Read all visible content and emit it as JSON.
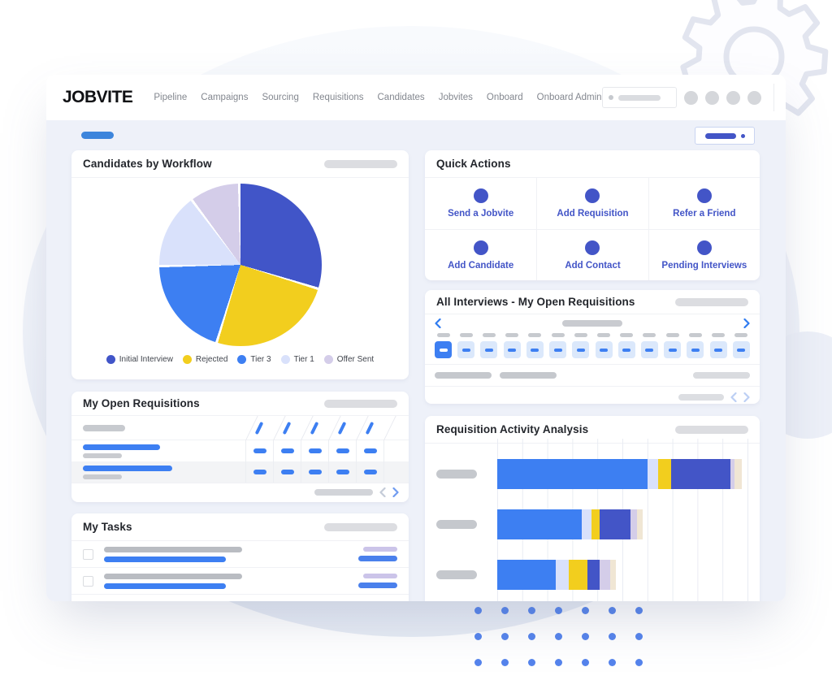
{
  "nav": {
    "logo": "JOBVITE",
    "menu": [
      "Pipeline",
      "Campaigns",
      "Sourcing",
      "Requisitions",
      "Candidates",
      "Jobvites",
      "Onboard",
      "Onboard Admin"
    ]
  },
  "cards": {
    "workflow": {
      "title": "Candidates by Workflow"
    },
    "quick_actions": {
      "title": "Quick Actions",
      "actions": [
        "Send a Jobvite",
        "Add Requisition",
        "Refer a Friend",
        "Add Candidate",
        "Add Contact",
        "Pending Interviews"
      ]
    },
    "interviews": {
      "title": "All Interviews - My Open Requisitions",
      "days": 14,
      "selected_day_index": 0
    },
    "activity": {
      "title": "Requisition Activity Analysis"
    },
    "requisitions": {
      "title": "My Open Requisitions",
      "columns": 5,
      "rows": 2
    },
    "tasks": {
      "title": "My Tasks",
      "rows": 2
    }
  },
  "chart_data": [
    {
      "type": "pie",
      "title": "Candidates by Workflow",
      "labels": [
        "Initial Interview",
        "Rejected",
        "Tier 3",
        "Tier 1",
        "Offer Sent"
      ],
      "values_pct": [
        30,
        25,
        20,
        15,
        10
      ],
      "colors": [
        "#4155C8",
        "#F2CE1E",
        "#3D7FF2",
        "#D9E1FB",
        "#D4CDE9"
      ],
      "start_angle_deg": 0,
      "direction": "clockwise",
      "legend_position": "bottom",
      "slice_gap": true
    },
    {
      "type": "bar",
      "orientation": "horizontal",
      "stacked": true,
      "title": "Requisition Activity Analysis",
      "categories": [
        "",
        "",
        ""
      ],
      "category_labels_are_placeholder_pills": true,
      "series": [
        {
          "name": "segment-blue",
          "color": "#3D7FF2",
          "values_pct": [
            60.0,
            33.5,
            23.4
          ]
        },
        {
          "name": "segment-periwinkle",
          "color": "#D9E1FB",
          "values_pct": [
            4.2,
            4.2,
            5.2
          ]
        },
        {
          "name": "segment-yellow",
          "color": "#F2CE1E",
          "values_pct": [
            4.9,
            3.0,
            7.4
          ]
        },
        {
          "name": "segment-indigo",
          "color": "#4355C7",
          "values_pct": [
            23.7,
            12.3,
            4.9
          ]
        },
        {
          "name": "segment-lavender",
          "color": "#D4CDE9",
          "values_pct": [
            1.6,
            2.6,
            4.2
          ]
        },
        {
          "name": "segment-beige",
          "color": "#F0E6D4",
          "values_pct": [
            2.9,
            2.3,
            2.3
          ]
        }
      ],
      "xlim_pct": [
        0,
        100
      ],
      "gridline_columns": 10,
      "axis_tick_labels_visible": false
    }
  ],
  "colors": {
    "accent_indigo": "#4355C7",
    "accent_blue": "#3D7FF2",
    "accent_yellow": "#F2CE1E",
    "periwinkle": "#D9E1FB",
    "lavender": "#D4CDE9",
    "beige": "#F0E6D4",
    "calendar_tile": "#DBE8FB",
    "content_background": "#EEF1F9",
    "pill_gray_dark": "#C7CACF",
    "pill_gray_light": "#DCDDE1",
    "top_pill_blue": "#3D85DC",
    "decor_dot_blue": "#5584EC",
    "chevron_blue": "#2F7BF0",
    "chevron_light": "#BCCFF4"
  },
  "decor": {
    "dot_grid_rows": 3,
    "dot_grid_cols": 7
  }
}
